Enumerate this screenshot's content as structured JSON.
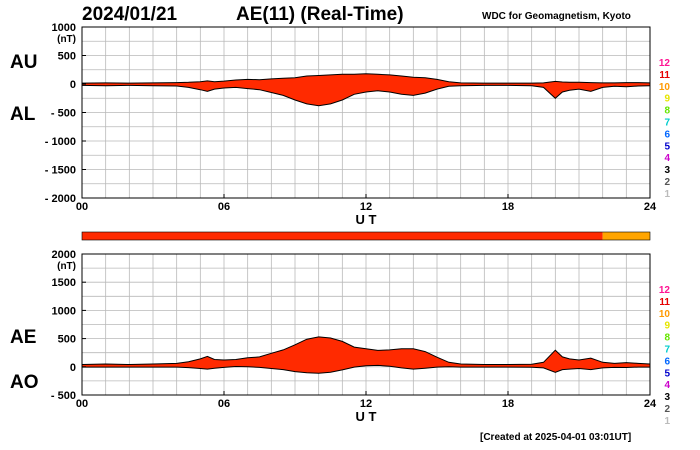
{
  "header": {
    "date": "2024/01/21",
    "title": "AE(11) (Real-Time)",
    "institution": "WDC for Geomagnetism, Kyoto"
  },
  "footer": {
    "created": "[Created at 2025-04-01 03:01UT]"
  },
  "legend": {
    "labels": [
      "12",
      "11",
      "10",
      "9",
      "8",
      "7",
      "6",
      "5",
      "4",
      "3",
      "2",
      "1"
    ],
    "colors": [
      "#ff1493",
      "#e60000",
      "#ff9900",
      "#e6e600",
      "#66e600",
      "#00cccc",
      "#0066ff",
      "#0000cc",
      "#cc00cc",
      "#000000",
      "#555555",
      "#bbbbbb"
    ]
  },
  "chart_data": [
    {
      "type": "area",
      "name": "AU/AL",
      "side_labels": [
        "AU",
        "AL"
      ],
      "unit": "(nT)",
      "xlabel": "U T",
      "x_ticks": [
        "00",
        "06",
        "12",
        "18",
        "24"
      ],
      "y_ticks": [
        "1000",
        "500",
        "0",
        "- 500",
        "- 1000",
        "- 1500",
        "- 2000"
      ],
      "xlim": [
        0,
        24
      ],
      "ylim": [
        -2000,
        1000
      ],
      "grid": true,
      "fill_color": "#ff2a00",
      "series": [
        {
          "name": "AU",
          "x": [
            0,
            1,
            2,
            3,
            4,
            4.5,
            5,
            5.3,
            5.6,
            6,
            6.5,
            7,
            7.5,
            8,
            8.5,
            9,
            9.5,
            10,
            10.5,
            11,
            11.5,
            12,
            12.5,
            13,
            13.5,
            14,
            14.5,
            15,
            15.5,
            16,
            17,
            18,
            19,
            19.5,
            20,
            20.3,
            20.6,
            21,
            21.5,
            22,
            22.5,
            23,
            23.5,
            24
          ],
          "y": [
            15,
            20,
            15,
            20,
            25,
            30,
            40,
            55,
            40,
            50,
            70,
            80,
            75,
            90,
            100,
            110,
            140,
            150,
            160,
            170,
            170,
            180,
            170,
            160,
            140,
            120,
            110,
            80,
            40,
            20,
            15,
            15,
            15,
            20,
            45,
            35,
            30,
            30,
            25,
            20,
            20,
            25,
            25,
            20
          ]
        },
        {
          "name": "AL",
          "x": [
            0,
            1,
            2,
            3,
            4,
            4.5,
            5,
            5.3,
            5.6,
            6,
            6.5,
            7,
            7.5,
            8,
            8.5,
            9,
            9.5,
            10,
            10.5,
            11,
            11.5,
            12,
            12.5,
            13,
            13.5,
            14,
            14.5,
            15,
            15.5,
            16,
            17,
            18,
            19,
            19.5,
            20,
            20.3,
            20.6,
            21,
            21.5,
            22,
            22.5,
            23,
            23.5,
            24
          ],
          "y": [
            -25,
            -30,
            -25,
            -30,
            -35,
            -60,
            -100,
            -130,
            -90,
            -70,
            -60,
            -80,
            -100,
            -150,
            -200,
            -280,
            -350,
            -380,
            -350,
            -280,
            -180,
            -140,
            -120,
            -140,
            -180,
            -200,
            -160,
            -90,
            -40,
            -30,
            -25,
            -25,
            -30,
            -60,
            -250,
            -140,
            -110,
            -90,
            -130,
            -60,
            -40,
            -50,
            -35,
            -30
          ]
        }
      ]
    },
    {
      "type": "area",
      "name": "AE/AO",
      "side_labels": [
        "AE",
        "AO"
      ],
      "unit": "(nT)",
      "xlabel": "U T",
      "x_ticks": [
        "00",
        "06",
        "12",
        "18",
        "24"
      ],
      "y_ticks": [
        "2000",
        "1500",
        "1000",
        "500",
        "0",
        "- 500"
      ],
      "xlim": [
        0,
        24
      ],
      "ylim": [
        -500,
        2000
      ],
      "grid": true,
      "fill_color": "#ff2a00",
      "series": [
        {
          "name": "AE",
          "x": [
            0,
            1,
            2,
            3,
            4,
            4.5,
            5,
            5.3,
            5.6,
            6,
            6.5,
            7,
            7.5,
            8,
            8.5,
            9,
            9.5,
            10,
            10.5,
            11,
            11.5,
            12,
            12.5,
            13,
            13.5,
            14,
            14.5,
            15,
            15.5,
            16,
            17,
            18,
            19,
            19.5,
            20,
            20.3,
            20.6,
            21,
            21.5,
            22,
            22.5,
            23,
            23.5,
            24
          ],
          "y": [
            40,
            50,
            40,
            50,
            60,
            90,
            140,
            185,
            130,
            120,
            130,
            160,
            175,
            240,
            300,
            390,
            490,
            530,
            510,
            450,
            350,
            320,
            290,
            300,
            320,
            320,
            270,
            170,
            80,
            50,
            40,
            40,
            45,
            80,
            295,
            175,
            140,
            120,
            155,
            80,
            60,
            75,
            60,
            50
          ]
        },
        {
          "name": "AO",
          "x": [
            0,
            1,
            2,
            3,
            4,
            4.5,
            5,
            5.3,
            5.6,
            6,
            6.5,
            7,
            7.5,
            8,
            8.5,
            9,
            9.5,
            10,
            10.5,
            11,
            11.5,
            12,
            12.5,
            13,
            13.5,
            14,
            14.5,
            15,
            15.5,
            16,
            17,
            18,
            19,
            19.5,
            20,
            20.3,
            20.6,
            21,
            21.5,
            22,
            22.5,
            23,
            23.5,
            24
          ],
          "y": [
            -5,
            -5,
            -5,
            -5,
            -5,
            -15,
            -30,
            -40,
            -25,
            -10,
            5,
            0,
            -10,
            -30,
            -50,
            -85,
            -105,
            -115,
            -95,
            -55,
            -5,
            20,
            25,
            10,
            -20,
            -40,
            -25,
            -5,
            0,
            -5,
            -5,
            -5,
            -8,
            -20,
            -100,
            -50,
            -40,
            -30,
            -50,
            -20,
            -10,
            -12,
            -5,
            -5
          ]
        }
      ]
    }
  ],
  "status_bar": {
    "segments": [
      {
        "from": 0,
        "to": 22,
        "color": "#ff2a00"
      },
      {
        "from": 22,
        "to": 24,
        "color": "#ffa500"
      }
    ]
  }
}
